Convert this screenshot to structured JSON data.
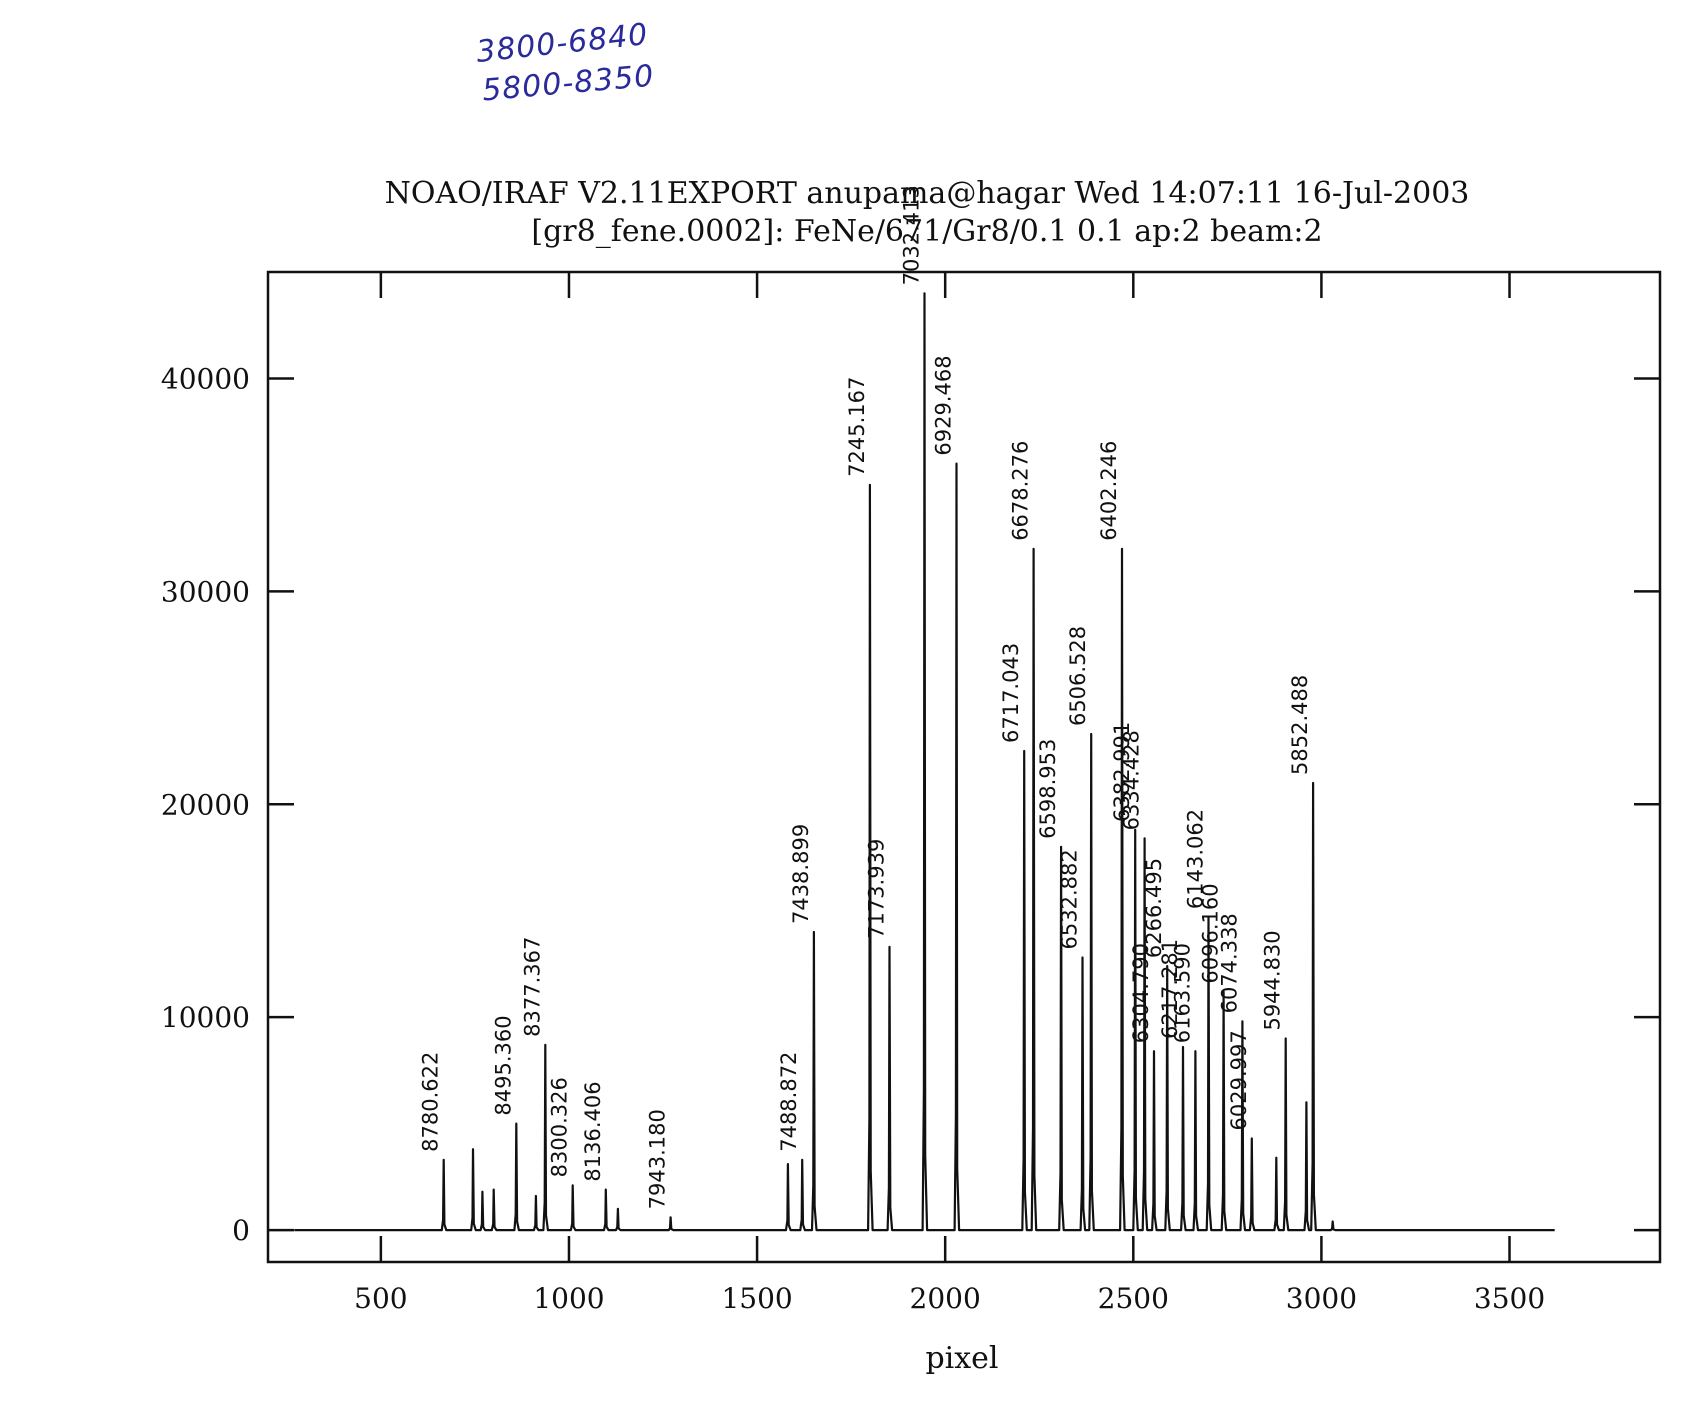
{
  "annotations": {
    "note1": "3800-6840",
    "note2": "5800-8350"
  },
  "chart_data": {
    "type": "line",
    "title": "NOAO/IRAF V2.11EXPORT anupama@hagar Wed 14:07:11 16-Jul-2003",
    "subtitle": "[gr8_fene.0002]: FeNe/671/Gr8/0.1 0.1 ap:2 beam:2",
    "xlabel": "pixel",
    "ylabel": "",
    "xlim": [
      200,
      3900
    ],
    "ylim": [
      -1500,
      45000
    ],
    "xticks": [
      500,
      1000,
      1500,
      2000,
      2500,
      3000,
      3500
    ],
    "yticks": [
      0,
      10000,
      20000,
      30000,
      40000
    ],
    "grid": false,
    "peaks": [
      {
        "x": 667,
        "y": 3300,
        "label": "8780.622"
      },
      {
        "x": 745,
        "y": 3800,
        "label": ""
      },
      {
        "x": 770,
        "y": 1800,
        "label": ""
      },
      {
        "x": 800,
        "y": 1900,
        "label": ""
      },
      {
        "x": 860,
        "y": 5000,
        "label": "8495.360"
      },
      {
        "x": 912,
        "y": 1600,
        "label": ""
      },
      {
        "x": 937,
        "y": 8700,
        "label": "8377.367"
      },
      {
        "x": 1010,
        "y": 2100,
        "label": "8300.326"
      },
      {
        "x": 1098,
        "y": 1900,
        "label": "8136.406"
      },
      {
        "x": 1130,
        "y": 1000,
        "label": ""
      },
      {
        "x": 1270,
        "y": 600,
        "label": "7943.180"
      },
      {
        "x": 1582,
        "y": 3100,
        "label": ""
      },
      {
        "x": 1620,
        "y": 3300,
        "label": "7488.872"
      },
      {
        "x": 1651,
        "y": 14000,
        "label": "7438.899"
      },
      {
        "x": 1800,
        "y": 35000,
        "label": "7245.167"
      },
      {
        "x": 1852,
        "y": 13300,
        "label": "7173.939"
      },
      {
        "x": 1945,
        "y": 44000,
        "label": "7032.413"
      },
      {
        "x": 2030,
        "y": 36000,
        "label": "6929.468"
      },
      {
        "x": 2210,
        "y": 22500,
        "label": "6717.043"
      },
      {
        "x": 2235,
        "y": 32000,
        "label": "6678.276"
      },
      {
        "x": 2308,
        "y": 18000,
        "label": "6598.953"
      },
      {
        "x": 2365,
        "y": 12800,
        "label": "6532.882"
      },
      {
        "x": 2388,
        "y": 23300,
        "label": "6506.528"
      },
      {
        "x": 2470,
        "y": 32000,
        "label": "6402.246"
      },
      {
        "x": 2505,
        "y": 18800,
        "label": "6382.991"
      },
      {
        "x": 2530,
        "y": 18400,
        "label": "6334.428"
      },
      {
        "x": 2555,
        "y": 8400,
        "label": "6304.790"
      },
      {
        "x": 2590,
        "y": 12400,
        "label": "6266.495"
      },
      {
        "x": 2632,
        "y": 8600,
        "label": "6217.281"
      },
      {
        "x": 2665,
        "y": 8400,
        "label": "6163.590"
      },
      {
        "x": 2700,
        "y": 14700,
        "label": "6143.062"
      },
      {
        "x": 2740,
        "y": 11200,
        "label": "6096.160"
      },
      {
        "x": 2790,
        "y": 9800,
        "label": "6074.338"
      },
      {
        "x": 2815,
        "y": 4300,
        "label": "6029.997"
      },
      {
        "x": 2880,
        "y": 3400,
        "label": ""
      },
      {
        "x": 2905,
        "y": 9000,
        "label": "5944.830"
      },
      {
        "x": 2960,
        "y": 6000,
        "label": ""
      },
      {
        "x": 2978,
        "y": 21000,
        "label": "5852.488"
      },
      {
        "x": 3030,
        "y": 400,
        "label": ""
      }
    ]
  }
}
